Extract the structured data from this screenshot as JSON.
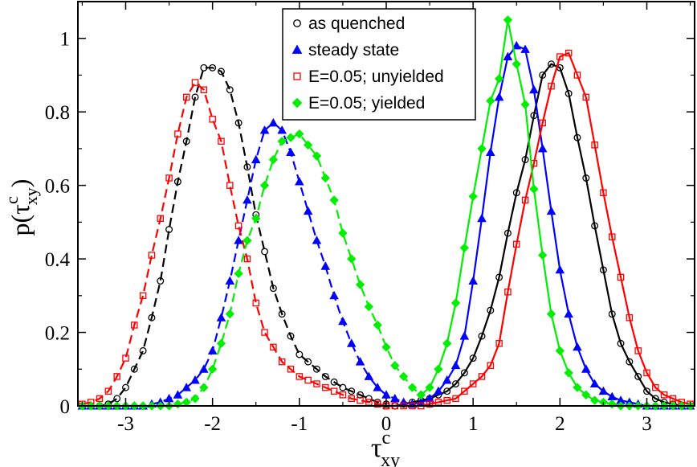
{
  "chart_data": {
    "type": "line",
    "xlabel": "τ",
    "xlabel_sup": "c",
    "xlabel_sub": "xy",
    "ylabel_prefix": "p(",
    "ylabel_symbol": "τ",
    "ylabel_sup": "c",
    "ylabel_sub": "xy",
    "ylabel_suffix": ")",
    "xlim": [
      -3.55,
      3.55
    ],
    "ylim": [
      0,
      1.1
    ],
    "xticks": [
      -3,
      -2,
      -1,
      0,
      1,
      2,
      3
    ],
    "xtick_labels": [
      "-3",
      "-2",
      "-1",
      "0",
      "1",
      "2",
      "3"
    ],
    "yticks": [
      0,
      0.2,
      0.4,
      0.6,
      0.8,
      1.0
    ],
    "ytick_labels": [
      "0",
      "0.2",
      "0.4",
      "0.6",
      "0.8",
      "1"
    ],
    "grid": false,
    "legend_position": "top-center",
    "series": [
      {
        "name": "as quenched",
        "color": "#000000",
        "marker": "circle-open",
        "branches": [
          {
            "x": [
              -3.5,
              -3.4,
              -3.3,
              -3.2,
              -3.1,
              -3.0,
              -2.9,
              -2.8,
              -2.7,
              -2.6,
              -2.5,
              -2.4,
              -2.3,
              -2.2,
              -2.1,
              -2.0,
              -1.9,
              -1.8,
              -1.7,
              -1.6,
              -1.5,
              -1.4,
              -1.3,
              -1.2,
              -1.1,
              -1.0,
              -0.9,
              -0.8,
              -0.7,
              -0.6,
              -0.5,
              -0.4,
              -0.3,
              -0.2,
              -0.1,
              0.0
            ],
            "y": [
              0.0,
              0.0,
              0.0,
              0.005,
              0.02,
              0.05,
              0.1,
              0.15,
              0.24,
              0.34,
              0.48,
              0.61,
              0.72,
              0.84,
              0.92,
              0.92,
              0.91,
              0.86,
              0.77,
              0.65,
              0.52,
              0.42,
              0.32,
              0.25,
              0.19,
              0.14,
              0.12,
              0.1,
              0.08,
              0.065,
              0.05,
              0.04,
              0.03,
              0.02,
              0.01,
              0.005
            ]
          },
          {
            "x": [
              0.0,
              0.1,
              0.2,
              0.3,
              0.4,
              0.5,
              0.6,
              0.7,
              0.8,
              0.9,
              1.0,
              1.1,
              1.2,
              1.3,
              1.4,
              1.5,
              1.6,
              1.7,
              1.8,
              1.9,
              2.0,
              2.1,
              2.2,
              2.3,
              2.4,
              2.5,
              2.6,
              2.7,
              2.8,
              2.9,
              3.0,
              3.1,
              3.2,
              3.3,
              3.4,
              3.5
            ],
            "y": [
              0.0,
              0.0,
              0.005,
              0.01,
              0.015,
              0.02,
              0.03,
              0.04,
              0.06,
              0.09,
              0.13,
              0.19,
              0.26,
              0.35,
              0.47,
              0.58,
              0.67,
              0.79,
              0.9,
              0.93,
              0.92,
              0.85,
              0.73,
              0.62,
              0.49,
              0.37,
              0.25,
              0.17,
              0.12,
              0.08,
              0.04,
              0.02,
              0.01,
              0.005,
              0.0,
              0.0
            ]
          }
        ]
      },
      {
        "name": "steady state",
        "color": "#0000ff",
        "marker": "triangle-filled",
        "branches": [
          {
            "x": [
              -3.5,
              -3.4,
              -3.3,
              -3.2,
              -3.1,
              -3.0,
              -2.9,
              -2.8,
              -2.7,
              -2.6,
              -2.5,
              -2.4,
              -2.3,
              -2.2,
              -2.1,
              -2.0,
              -1.9,
              -1.8,
              -1.7,
              -1.6,
              -1.5,
              -1.4,
              -1.3,
              -1.2,
              -1.1,
              -1.0,
              -0.9,
              -0.8,
              -0.7,
              -0.6,
              -0.5,
              -0.4,
              -0.3,
              -0.2,
              -0.1,
              0.0,
              0.1,
              0.2,
              0.3
            ],
            "y": [
              0.0,
              0.0,
              0.0,
              0.0,
              0.0,
              0.0,
              0.0,
              0.0,
              0.005,
              0.01,
              0.02,
              0.03,
              0.05,
              0.07,
              0.1,
              0.15,
              0.24,
              0.34,
              0.45,
              0.56,
              0.67,
              0.75,
              0.77,
              0.75,
              0.69,
              0.61,
              0.53,
              0.45,
              0.38,
              0.3,
              0.23,
              0.17,
              0.12,
              0.08,
              0.05,
              0.03,
              0.02,
              0.01,
              0.005
            ]
          },
          {
            "x": [
              0.3,
              0.4,
              0.5,
              0.6,
              0.7,
              0.8,
              0.9,
              1.0,
              1.1,
              1.2,
              1.3,
              1.4,
              1.5,
              1.6,
              1.7,
              1.8,
              1.9,
              2.0,
              2.1,
              2.2,
              2.3,
              2.4,
              2.5,
              2.6,
              2.7,
              2.8,
              2.9,
              3.0,
              3.1,
              3.2,
              3.3,
              3.4,
              3.5
            ],
            "y": [
              0.005,
              0.01,
              0.02,
              0.04,
              0.07,
              0.11,
              0.19,
              0.34,
              0.51,
              0.69,
              0.84,
              0.95,
              0.98,
              0.97,
              0.86,
              0.7,
              0.53,
              0.37,
              0.25,
              0.16,
              0.1,
              0.06,
              0.04,
              0.025,
              0.015,
              0.01,
              0.005,
              0.0,
              0.0,
              0.0,
              0.0,
              0.0,
              0.0
            ]
          }
        ]
      },
      {
        "name": "E=0.05; unyielded",
        "color": "#ff0000",
        "marker": "square-open",
        "branches": [
          {
            "x": [
              -3.5,
              -3.4,
              -3.3,
              -3.2,
              -3.1,
              -3.0,
              -2.9,
              -2.8,
              -2.7,
              -2.6,
              -2.5,
              -2.4,
              -2.3,
              -2.2,
              -2.1,
              -2.0,
              -1.9,
              -1.8,
              -1.7,
              -1.6,
              -1.5,
              -1.4,
              -1.3,
              -1.2,
              -1.1,
              -1.0,
              -0.9,
              -0.8,
              -0.7,
              -0.6,
              -0.5,
              -0.4,
              -0.3,
              -0.2,
              -0.1,
              0.0
            ],
            "y": [
              0.005,
              0.01,
              0.02,
              0.04,
              0.08,
              0.13,
              0.22,
              0.3,
              0.41,
              0.51,
              0.62,
              0.74,
              0.84,
              0.88,
              0.86,
              0.78,
              0.72,
              0.6,
              0.49,
              0.4,
              0.28,
              0.2,
              0.16,
              0.12,
              0.1,
              0.08,
              0.07,
              0.06,
              0.05,
              0.04,
              0.03,
              0.02,
              0.015,
              0.01,
              0.005,
              0.0
            ]
          },
          {
            "x": [
              0.0,
              0.1,
              0.2,
              0.3,
              0.4,
              0.5,
              0.6,
              0.7,
              0.8,
              0.9,
              1.0,
              1.1,
              1.2,
              1.3,
              1.4,
              1.5,
              1.6,
              1.7,
              1.8,
              1.9,
              2.0,
              2.1,
              2.2,
              2.3,
              2.4,
              2.5,
              2.6,
              2.7,
              2.8,
              2.9,
              3.0,
              3.1,
              3.2,
              3.3,
              3.4,
              3.5
            ],
            "y": [
              0.0,
              0.0,
              0.0,
              0.0,
              0.0,
              0.005,
              0.01,
              0.015,
              0.02,
              0.04,
              0.06,
              0.08,
              0.11,
              0.17,
              0.31,
              0.44,
              0.56,
              0.66,
              0.77,
              0.87,
              0.95,
              0.96,
              0.9,
              0.84,
              0.71,
              0.58,
              0.46,
              0.35,
              0.24,
              0.15,
              0.09,
              0.05,
              0.03,
              0.02,
              0.01,
              0.005
            ]
          }
        ]
      },
      {
        "name": "E=0.05; yielded",
        "color": "#00ee00",
        "marker": "diamond-filled",
        "branches": [
          {
            "x": [
              -3.5,
              -3.4,
              -3.3,
              -3.2,
              -3.1,
              -3.0,
              -2.9,
              -2.8,
              -2.7,
              -2.6,
              -2.5,
              -2.4,
              -2.3,
              -2.2,
              -2.1,
              -2.0,
              -1.9,
              -1.8,
              -1.7,
              -1.6,
              -1.5,
              -1.4,
              -1.3,
              -1.2,
              -1.1,
              -1.0,
              -0.9,
              -0.8,
              -0.7,
              -0.6,
              -0.5,
              -0.4,
              -0.3,
              -0.2,
              -0.1,
              0.0,
              0.1,
              0.2,
              0.3,
              0.4
            ],
            "y": [
              0.0,
              0.0,
              0.0,
              0.0,
              0.0,
              0.0,
              0.0,
              0.0,
              0.0,
              0.0,
              0.0,
              0.005,
              0.01,
              0.02,
              0.05,
              0.1,
              0.17,
              0.25,
              0.36,
              0.45,
              0.51,
              0.6,
              0.67,
              0.72,
              0.73,
              0.74,
              0.71,
              0.68,
              0.62,
              0.56,
              0.47,
              0.4,
              0.33,
              0.27,
              0.22,
              0.16,
              0.11,
              0.08,
              0.05,
              0.03
            ]
          },
          {
            "x": [
              0.4,
              0.5,
              0.6,
              0.7,
              0.8,
              0.9,
              1.0,
              1.1,
              1.2,
              1.3,
              1.4,
              1.5,
              1.6,
              1.7,
              1.8,
              1.9,
              2.0,
              2.1,
              2.2,
              2.3,
              2.4,
              2.5,
              2.6,
              2.7,
              2.8,
              2.9,
              3.0,
              3.1,
              3.2,
              3.3,
              3.4,
              3.5
            ],
            "y": [
              0.03,
              0.05,
              0.1,
              0.17,
              0.28,
              0.43,
              0.57,
              0.7,
              0.83,
              0.89,
              1.05,
              0.93,
              0.82,
              0.59,
              0.41,
              0.25,
              0.15,
              0.09,
              0.05,
              0.03,
              0.015,
              0.01,
              0.005,
              0.0,
              0.0,
              0.0,
              0.0,
              0.0,
              0.0,
              0.0,
              0.0,
              0.0
            ]
          }
        ]
      }
    ]
  }
}
